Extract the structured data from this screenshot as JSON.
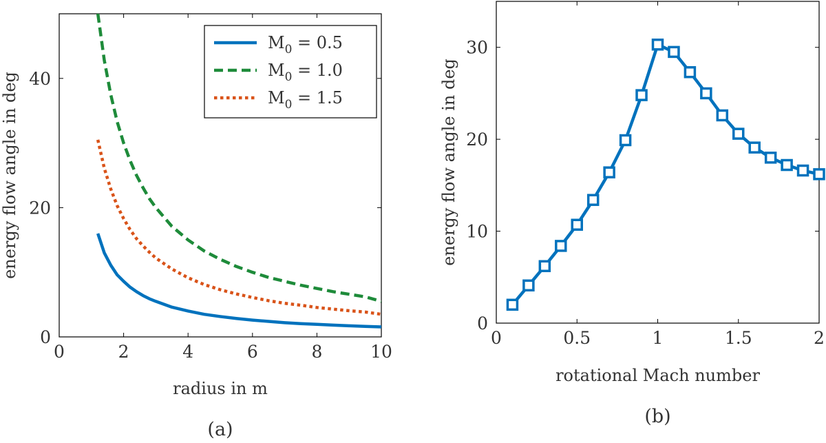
{
  "chart_data": [
    {
      "type": "line",
      "title": "",
      "caption": "(a)",
      "xlabel": "radius in m",
      "ylabel": "energy flow angle in deg",
      "xlim": [
        0,
        10
      ],
      "ylim": [
        0,
        50
      ],
      "xticks": [
        0,
        2,
        4,
        6,
        8,
        10
      ],
      "yticks": [
        0,
        20,
        40
      ],
      "legend_position": "top-right",
      "series": [
        {
          "name": "M0 = 0.5",
          "label_main": "M",
          "label_sub": "0",
          "label_rest": " = 0.5",
          "color": "#0072BD",
          "style": "solid",
          "x": [
            1.2,
            1.4,
            1.6,
            1.8,
            2.0,
            2.2,
            2.4,
            2.6,
            2.8,
            3.0,
            3.5,
            4.0,
            4.5,
            5.0,
            5.5,
            6.0,
            6.5,
            7.0,
            7.5,
            8.0,
            8.5,
            9.0,
            9.5,
            10.0
          ],
          "y": [
            16.0,
            13.0,
            11.1,
            9.6,
            8.6,
            7.7,
            7.0,
            6.4,
            5.9,
            5.5,
            4.6,
            4.0,
            3.5,
            3.15,
            2.85,
            2.6,
            2.4,
            2.2,
            2.05,
            1.95,
            1.83,
            1.72,
            1.63,
            1.55
          ]
        },
        {
          "name": "M0 = 1.0",
          "label_main": "M",
          "label_sub": "0",
          "label_rest": " = 1.0",
          "color": "#1E8B3A",
          "style": "dashed",
          "x": [
            1.2,
            1.4,
            1.6,
            1.8,
            2.0,
            2.2,
            2.4,
            2.6,
            2.8,
            3.0,
            3.5,
            4.0,
            4.5,
            5.0,
            5.5,
            6.0,
            6.5,
            7.0,
            7.5,
            8.0,
            8.5,
            9.0,
            9.5,
            10.0
          ],
          "y": [
            50.0,
            42.8,
            37.5,
            33.3,
            30.0,
            27.3,
            25.0,
            23.1,
            21.4,
            20.0,
            17.1,
            15.0,
            13.3,
            12.0,
            10.9,
            10.0,
            9.2,
            8.6,
            8.0,
            7.5,
            7.0,
            6.6,
            6.2,
            5.5
          ]
        },
        {
          "name": "M0 = 1.5",
          "label_main": "M",
          "label_sub": "0",
          "label_rest": " = 1.5",
          "color": "#D95319",
          "style": "dotted",
          "x": [
            1.2,
            1.4,
            1.6,
            1.8,
            2.0,
            2.2,
            2.4,
            2.6,
            2.8,
            3.0,
            3.5,
            4.0,
            4.5,
            5.0,
            5.5,
            6.0,
            6.5,
            7.0,
            7.5,
            8.0,
            8.5,
            9.0,
            9.5,
            10.0
          ],
          "y": [
            30.5,
            26.1,
            22.9,
            20.3,
            18.3,
            16.6,
            15.2,
            14.1,
            13.1,
            12.2,
            10.5,
            9.15,
            8.1,
            7.3,
            6.65,
            6.1,
            5.6,
            5.2,
            4.9,
            4.55,
            4.3,
            4.05,
            3.85,
            3.5
          ]
        }
      ]
    },
    {
      "type": "line",
      "title": "",
      "caption": "(b)",
      "xlabel": "rotational Mach number",
      "ylabel": "energy flow angle in deg",
      "xlim": [
        0,
        2
      ],
      "ylim": [
        0,
        35
      ],
      "xticks": [
        0,
        0.5,
        1,
        1.5,
        2
      ],
      "xtick_labels": [
        "0",
        "0.5",
        "1",
        "1.5",
        "2"
      ],
      "yticks": [
        0,
        10,
        20,
        30
      ],
      "series": [
        {
          "name": "energy flow angle",
          "color": "#0072BD",
          "marker": "square",
          "x": [
            0.1,
            0.2,
            0.3,
            0.4,
            0.5,
            0.6,
            0.7,
            0.8,
            0.9,
            1.0,
            1.1,
            1.2,
            1.3,
            1.4,
            1.5,
            1.6,
            1.7,
            1.8,
            1.9,
            2.0
          ],
          "y": [
            2.0,
            4.1,
            6.2,
            8.4,
            10.7,
            13.4,
            16.4,
            19.9,
            24.8,
            30.3,
            29.5,
            27.3,
            25.0,
            22.6,
            20.6,
            19.1,
            18.0,
            17.2,
            16.6,
            16.2
          ]
        }
      ]
    }
  ]
}
